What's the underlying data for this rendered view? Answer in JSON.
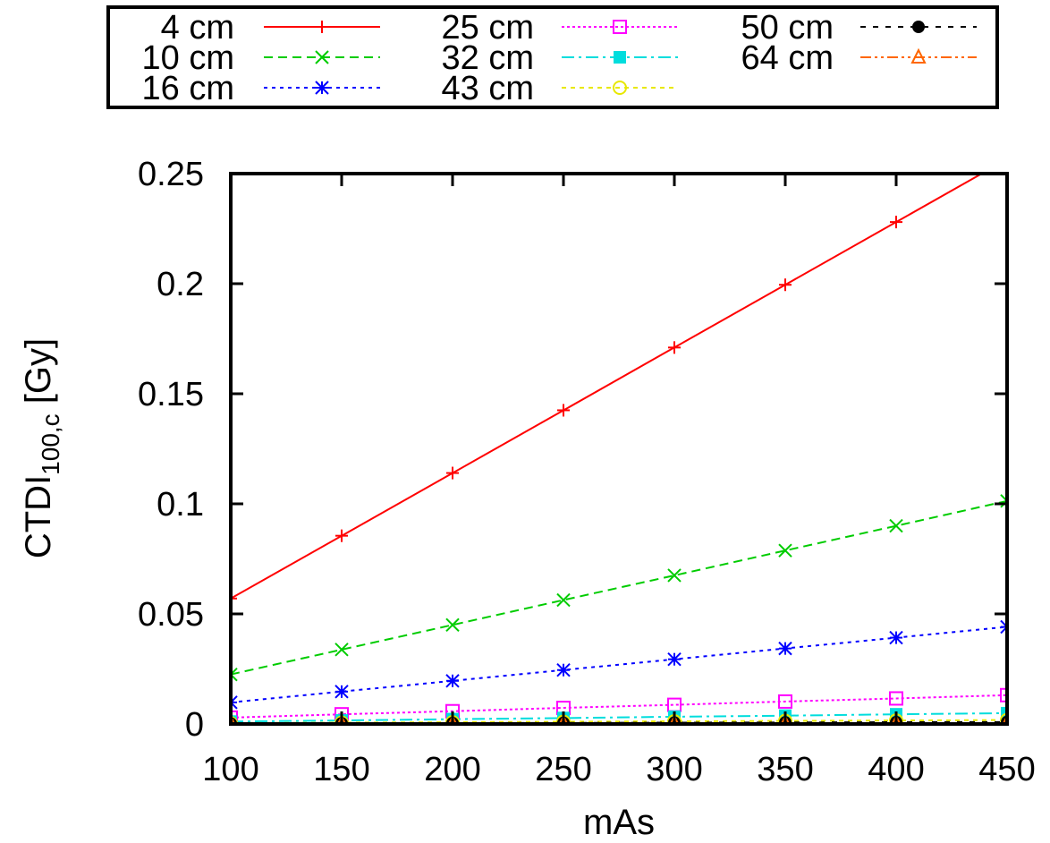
{
  "chart_data": {
    "type": "line",
    "title": "",
    "xlabel": "mAs",
    "ylabel": "CTDI",
    "ylabel_subscript": "100,c",
    "ylabel_unit": " [Gy]",
    "xlim": [
      100,
      450
    ],
    "ylim": [
      0,
      0.25
    ],
    "x_ticks": [
      100,
      150,
      200,
      250,
      300,
      350,
      400,
      450
    ],
    "x_tick_labels": [
      "100",
      "150",
      "200",
      "250",
      "300",
      "350",
      "400",
      "450"
    ],
    "y_ticks": [
      0,
      0.05,
      0.1,
      0.15,
      0.2,
      0.25
    ],
    "y_tick_labels": [
      "0",
      "0.05",
      "0.1",
      "0.15",
      "0.2",
      "0.25"
    ],
    "grid": false,
    "legend_position": "top",
    "x": [
      100,
      150,
      200,
      250,
      300,
      350,
      400,
      450
    ],
    "series": [
      {
        "name": "4 cm",
        "color": "#ff0000",
        "marker": "plus",
        "dash": "",
        "values": [
          0.057,
          0.0855,
          0.114,
          0.1425,
          0.171,
          0.1995,
          0.228,
          0.2565
        ]
      },
      {
        "name": "10 cm",
        "color": "#00cc00",
        "marker": "cross",
        "dash": "10,6",
        "values": [
          0.0225,
          0.0338,
          0.045,
          0.0563,
          0.0675,
          0.0788,
          0.09,
          0.1013
        ]
      },
      {
        "name": "16 cm",
        "color": "#0000ff",
        "marker": "star",
        "dash": "4,5",
        "values": [
          0.0098,
          0.0147,
          0.0196,
          0.0245,
          0.0294,
          0.0343,
          0.0392,
          0.0441
        ]
      },
      {
        "name": "25 cm",
        "color": "#ff00ff",
        "marker": "open-square",
        "dash": "3,3",
        "values": [
          0.0029,
          0.0044,
          0.0058,
          0.0073,
          0.0087,
          0.0102,
          0.0116,
          0.0131
        ]
      },
      {
        "name": "32 cm",
        "color": "#00dddd",
        "marker": "filled-square",
        "dash": "14,5,3,5",
        "values": [
          0.0011,
          0.0016,
          0.0022,
          0.0027,
          0.0033,
          0.0038,
          0.0044,
          0.0049
        ]
      },
      {
        "name": "43 cm",
        "color": "#e8e800",
        "marker": "open-circle",
        "dash": "5,5",
        "values": [
          0.0004,
          0.0006,
          0.0008,
          0.001,
          0.0012,
          0.0014,
          0.0016,
          0.0018
        ]
      },
      {
        "name": "50 cm",
        "color": "#000000",
        "marker": "filled-circle",
        "dash": "6,8",
        "values": [
          0.0002,
          0.0003,
          0.0004,
          0.0005,
          0.0006,
          0.0007,
          0.0008,
          0.0009
        ]
      },
      {
        "name": "64 cm",
        "color": "#ff6600",
        "marker": "open-triangle",
        "dash": "12,4,3,4,3,4",
        "values": [
          0.0001,
          0.0001,
          0.0001,
          0.0002,
          0.0002,
          0.0002,
          0.0003,
          0.0003
        ]
      }
    ]
  }
}
